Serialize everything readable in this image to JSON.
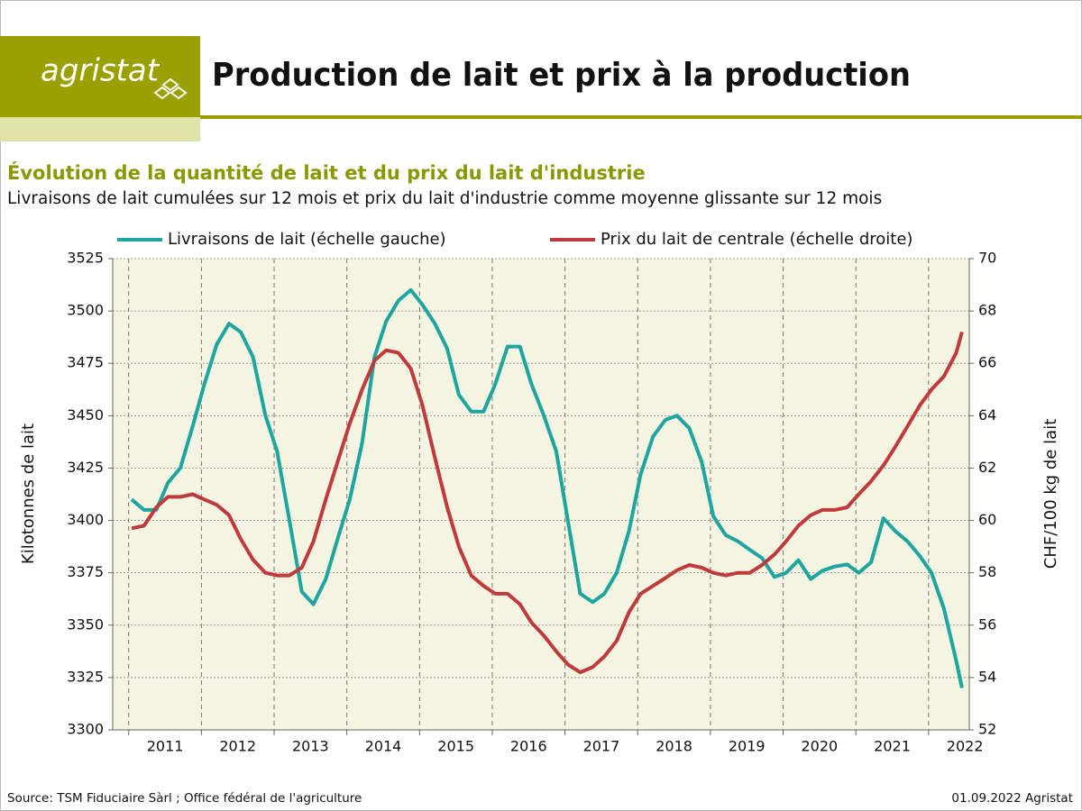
{
  "header": {
    "logo": "agristat",
    "title": "Production de lait et prix à la production"
  },
  "chart_data": {
    "type": "line",
    "title": "Évolution de la quantité de lait et du prix du lait d'industrie",
    "subtitle": "Livraisons de lait cumulées sur 12 mois et prix du lait d'industrie comme moyenne glissante sur 12 mois",
    "ylabel": "Kilotonnes  de lait",
    "y2label": "CHF/100 kg de lait",
    "x": [
      2011.04,
      2011.21,
      2011.38,
      2011.54,
      2011.71,
      2011.88,
      2012.04,
      2012.21,
      2012.38,
      2012.54,
      2012.71,
      2012.88,
      2013.04,
      2013.21,
      2013.38,
      2013.54,
      2013.71,
      2013.88,
      2014.04,
      2014.21,
      2014.38,
      2014.54,
      2014.71,
      2014.88,
      2015.04,
      2015.21,
      2015.38,
      2015.54,
      2015.71,
      2015.88,
      2016.04,
      2016.21,
      2016.38,
      2016.54,
      2016.71,
      2016.88,
      2017.04,
      2017.21,
      2017.38,
      2017.54,
      2017.71,
      2017.88,
      2018.04,
      2018.21,
      2018.38,
      2018.54,
      2018.71,
      2018.88,
      2019.04,
      2019.21,
      2019.38,
      2019.54,
      2019.71,
      2019.88,
      2020.04,
      2020.21,
      2020.38,
      2020.54,
      2020.71,
      2020.88,
      2021.04,
      2021.21,
      2021.38,
      2021.54,
      2021.71,
      2021.88,
      2022.04,
      2022.21,
      2022.38,
      2022.46
    ],
    "series": [
      {
        "name": "Livraisons de lait (échelle gauche)",
        "color": "#1fa5a0",
        "axis": "y",
        "values": [
          3410,
          3405,
          3405,
          3418,
          3425,
          3445,
          3465,
          3484,
          3494,
          3490,
          3478,
          3450,
          3433,
          3400,
          3366,
          3360,
          3372,
          3392,
          3410,
          3437,
          3478,
          3495,
          3505,
          3510,
          3503,
          3494,
          3482,
          3460,
          3452,
          3452,
          3465,
          3483,
          3483,
          3465,
          3450,
          3433,
          3400,
          3365,
          3361,
          3365,
          3375,
          3395,
          3422,
          3440,
          3448,
          3450,
          3444,
          3428,
          3402,
          3393,
          3390,
          3386,
          3382,
          3373,
          3375,
          3381,
          3372,
          3376,
          3378,
          3379,
          3375,
          3380,
          3401,
          3395,
          3390,
          3383,
          3375,
          3358,
          3333,
          3320
        ]
      },
      {
        "name": "Prix du lait de centrale (échelle droite)",
        "color": "#c0393b",
        "axis": "y2",
        "values": [
          59.7,
          59.8,
          60.5,
          60.9,
          60.9,
          61.0,
          60.8,
          60.6,
          60.2,
          59.3,
          58.5,
          58.0,
          57.9,
          57.9,
          58.2,
          59.2,
          60.8,
          62.3,
          63.7,
          65.0,
          66.1,
          66.5,
          66.4,
          65.8,
          64.4,
          62.4,
          60.5,
          59.0,
          57.9,
          57.5,
          57.2,
          57.2,
          56.8,
          56.1,
          55.6,
          55.0,
          54.5,
          54.2,
          54.4,
          54.8,
          55.4,
          56.5,
          57.2,
          57.5,
          57.8,
          58.1,
          58.3,
          58.2,
          58.0,
          57.9,
          58.0,
          58.0,
          58.3,
          58.7,
          59.2,
          59.8,
          60.2,
          60.4,
          60.4,
          60.5,
          61.0,
          61.5,
          62.1,
          62.8,
          63.6,
          64.4,
          65.0,
          65.5,
          66.4,
          67.2
        ]
      }
    ],
    "xlim": [
      2010.78,
      2022.56
    ],
    "xticks": [
      {
        "value": 2011,
        "label": "2011"
      },
      {
        "value": 2012,
        "label": "2012"
      },
      {
        "value": 2013,
        "label": "2013"
      },
      {
        "value": 2014,
        "label": "2014"
      },
      {
        "value": 2015,
        "label": "2015"
      },
      {
        "value": 2016,
        "label": "2016"
      },
      {
        "value": 2017,
        "label": "2017"
      },
      {
        "value": 2018,
        "label": "2018"
      },
      {
        "value": 2019,
        "label": "2019"
      },
      {
        "value": 2020,
        "label": "2020"
      },
      {
        "value": 2021,
        "label": "2021"
      },
      {
        "value": 2022,
        "label": "2022"
      }
    ],
    "ylim": [
      3300,
      3525
    ],
    "yticks": [
      3300,
      3325,
      3350,
      3375,
      3400,
      3425,
      3450,
      3475,
      3500,
      3525
    ],
    "y2lim": [
      52,
      70
    ],
    "y2ticks": [
      52,
      54,
      56,
      58,
      60,
      62,
      64,
      66,
      68,
      70
    ],
    "grid": true,
    "legend": "top"
  },
  "footer": {
    "source": "Source: TSM Fiduciaire Sàrl ; Office fédéral de l'agriculture",
    "date": "01.09.2022 Agristat"
  }
}
